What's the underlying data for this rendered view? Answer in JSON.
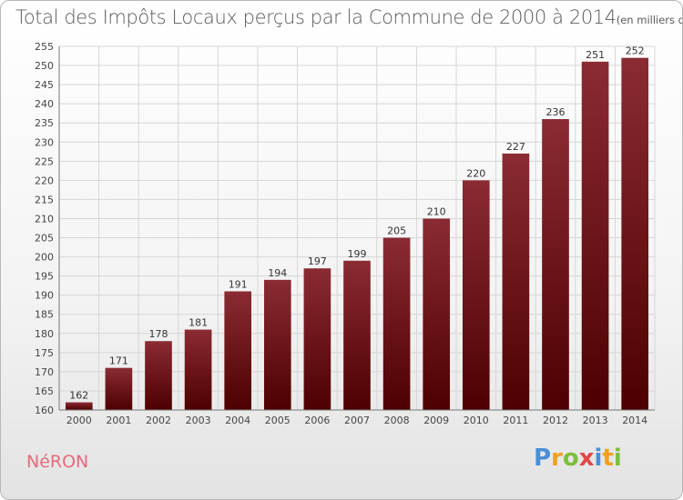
{
  "header": {
    "title": "Total des Impôts Locaux perçus par la Commune de 2000 à 2014",
    "unit": "(en milliers d'€)"
  },
  "commune": "NéRON",
  "logo": {
    "text": "Proxiti"
  },
  "colors": {
    "bar_top": "#8b2b33",
    "bar_bottom": "#4d0000",
    "grid": "#d6d6d6",
    "commune": "#e86a7e"
  },
  "chart_data": {
    "type": "bar",
    "title": "Total des Impôts Locaux perçus par la Commune de 2000 à 2014",
    "categories": [
      "2000",
      "2001",
      "2002",
      "2003",
      "2004",
      "2005",
      "2006",
      "2007",
      "2008",
      "2009",
      "2010",
      "2011",
      "2012",
      "2013",
      "2014"
    ],
    "values": [
      162,
      171,
      178,
      181,
      191,
      194,
      197,
      199,
      205,
      210,
      220,
      227,
      236,
      251,
      252
    ],
    "ylim": [
      160,
      255
    ],
    "ytick_step": 5,
    "grid": true,
    "data_labels": true
  }
}
